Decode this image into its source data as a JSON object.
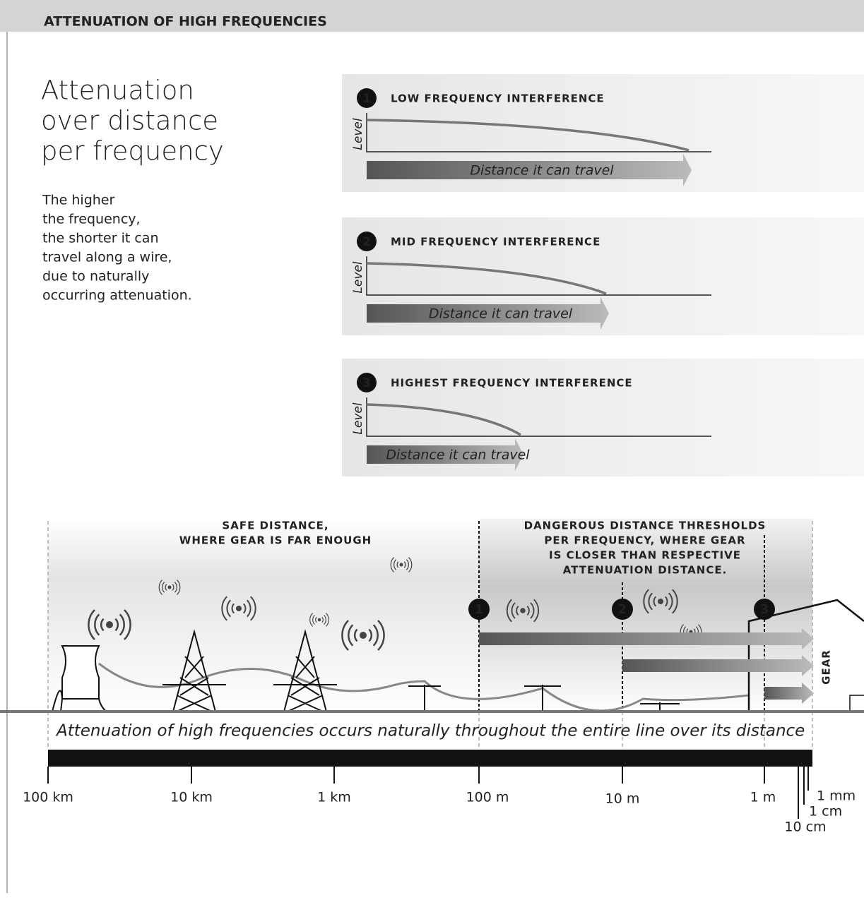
{
  "header": {
    "title": "ATTENUATION OF HIGH FREQUENCIES"
  },
  "intro": {
    "heading": [
      "Attenuation",
      "over distance",
      "per frequency"
    ],
    "body": [
      "The higher",
      "the frequency,",
      "the shorter it can",
      "travel along a wire,",
      "due to naturally",
      "occurring attenuation."
    ]
  },
  "panels": [
    {
      "number": "1",
      "title": "LOW FREQUENCY INTERFERENCE",
      "y_label": "Level",
      "arrow_label": "Distance it can travel"
    },
    {
      "number": "2",
      "title": "MID FREQUENCY INTERFERENCE",
      "y_label": "Level",
      "arrow_label": "Distance it can travel"
    },
    {
      "number": "3",
      "title": "HIGHEST FREQUENCY INTERFERENCE",
      "y_label": "Level",
      "arrow_label": "Distance it can travel"
    }
  ],
  "scene": {
    "safe_label": [
      "SAFE DISTANCE,",
      "WHERE GEAR IS FAR ENOUGH"
    ],
    "danger_label": [
      "DANGEROUS DISTANCE THRESHOLDS",
      "PER FREQUENCY, WHERE GEAR",
      "IS CLOSER THAN RESPECTIVE",
      "ATTENUATION DISTANCE."
    ],
    "markers": [
      "1",
      "2",
      "3"
    ],
    "gear_label": "GEAR",
    "caption": "Attenuation of high frequencies occurs naturally throughout the entire line over its distance",
    "scale_labels": [
      "100 km",
      "10 km",
      "1 km",
      "100 m",
      "10 m",
      "1 m",
      "10 cm",
      "1 cm",
      "1 mm"
    ]
  }
}
